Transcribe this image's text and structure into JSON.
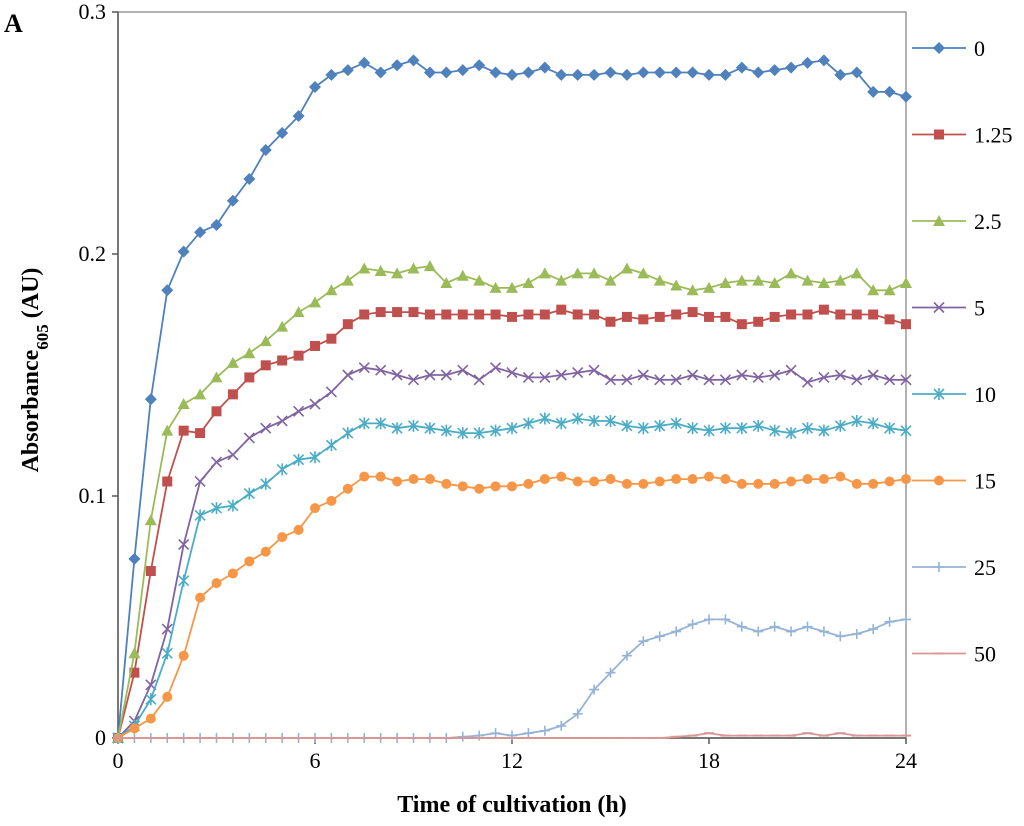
{
  "chart_data": {
    "type": "line",
    "panel_label": "A",
    "title": "",
    "xlabel": "Time of cultivation  (h)",
    "ylabel_main": "Absorbance",
    "ylabel_sub": "605",
    "ylabel_unit": " (AU)",
    "xlim": [
      0,
      24
    ],
    "ylim": [
      0,
      0.3
    ],
    "x_ticks": [
      0,
      6,
      12,
      18,
      24
    ],
    "x_tick_labels": [
      "0",
      "6",
      "12",
      "18",
      "24"
    ],
    "y_ticks": [
      0,
      0.1,
      0.2,
      0.3
    ],
    "y_tick_labels": [
      "0",
      "0.1",
      "0.2",
      "0.3"
    ],
    "legend_position": "right",
    "x": [
      0,
      0.5,
      1,
      1.5,
      2,
      2.5,
      3,
      3.5,
      4,
      4.5,
      5,
      5.5,
      6,
      6.5,
      7,
      7.5,
      8,
      8.5,
      9,
      9.5,
      10,
      10.5,
      11,
      11.5,
      12,
      12.5,
      13,
      13.5,
      14,
      14.5,
      15,
      15.5,
      16,
      16.5,
      17,
      17.5,
      18,
      18.5,
      19,
      19.5,
      20,
      20.5,
      21,
      21.5,
      22,
      22.5,
      23,
      23.5,
      24
    ],
    "series": [
      {
        "name": "0",
        "color": "#4f81bd",
        "marker": "diamond",
        "values": [
          0,
          0.074,
          0.14,
          0.185,
          0.201,
          0.209,
          0.212,
          0.222,
          0.231,
          0.243,
          0.25,
          0.257,
          0.269,
          0.274,
          0.276,
          0.279,
          0.275,
          0.278,
          0.28,
          0.275,
          0.275,
          0.276,
          0.278,
          0.275,
          0.274,
          0.275,
          0.277,
          0.274,
          0.274,
          0.274,
          0.275,
          0.274,
          0.275,
          0.275,
          0.275,
          0.275,
          0.274,
          0.274,
          0.277,
          0.275,
          0.276,
          0.277,
          0.279,
          0.28,
          0.274,
          0.275,
          0.267,
          0.267,
          0.265
        ]
      },
      {
        "name": "1.25",
        "color": "#c0504d",
        "marker": "square",
        "values": [
          0,
          0.027,
          0.069,
          0.106,
          0.127,
          0.126,
          0.135,
          0.142,
          0.149,
          0.154,
          0.156,
          0.158,
          0.162,
          0.165,
          0.171,
          0.175,
          0.176,
          0.176,
          0.176,
          0.175,
          0.175,
          0.175,
          0.175,
          0.175,
          0.174,
          0.175,
          0.175,
          0.177,
          0.175,
          0.175,
          0.172,
          0.174,
          0.173,
          0.174,
          0.175,
          0.176,
          0.174,
          0.174,
          0.171,
          0.172,
          0.174,
          0.175,
          0.175,
          0.177,
          0.175,
          0.175,
          0.175,
          0.173,
          0.171
        ]
      },
      {
        "name": "2.5",
        "color": "#9bbb59",
        "marker": "triangle",
        "values": [
          0,
          0.035,
          0.09,
          0.127,
          0.138,
          0.142,
          0.149,
          0.155,
          0.159,
          0.164,
          0.17,
          0.176,
          0.18,
          0.185,
          0.189,
          0.194,
          0.193,
          0.192,
          0.194,
          0.195,
          0.188,
          0.191,
          0.189,
          0.186,
          0.186,
          0.188,
          0.192,
          0.189,
          0.192,
          0.192,
          0.189,
          0.194,
          0.192,
          0.189,
          0.187,
          0.185,
          0.186,
          0.188,
          0.189,
          0.189,
          0.188,
          0.192,
          0.189,
          0.188,
          0.189,
          0.192,
          0.185,
          0.185,
          0.188
        ]
      },
      {
        "name": "5",
        "color": "#8064a2",
        "marker": "x",
        "values": [
          0,
          0.007,
          0.022,
          0.045,
          0.08,
          0.106,
          0.114,
          0.117,
          0.124,
          0.128,
          0.131,
          0.135,
          0.138,
          0.143,
          0.15,
          0.153,
          0.152,
          0.15,
          0.148,
          0.15,
          0.15,
          0.152,
          0.148,
          0.153,
          0.151,
          0.149,
          0.149,
          0.15,
          0.151,
          0.152,
          0.148,
          0.148,
          0.15,
          0.148,
          0.148,
          0.15,
          0.148,
          0.148,
          0.15,
          0.149,
          0.15,
          0.152,
          0.147,
          0.149,
          0.15,
          0.148,
          0.15,
          0.148,
          0.148
        ]
      },
      {
        "name": "10",
        "color": "#4bacc6",
        "marker": "star",
        "values": [
          0,
          0.005,
          0.016,
          0.035,
          0.065,
          0.092,
          0.095,
          0.096,
          0.101,
          0.105,
          0.111,
          0.115,
          0.116,
          0.121,
          0.126,
          0.13,
          0.13,
          0.128,
          0.129,
          0.128,
          0.127,
          0.126,
          0.126,
          0.127,
          0.128,
          0.13,
          0.132,
          0.13,
          0.132,
          0.131,
          0.131,
          0.129,
          0.128,
          0.129,
          0.13,
          0.128,
          0.127,
          0.128,
          0.128,
          0.129,
          0.127,
          0.126,
          0.128,
          0.127,
          0.129,
          0.131,
          0.13,
          0.128,
          0.127
        ]
      },
      {
        "name": "15",
        "color": "#f79646",
        "marker": "circle",
        "values": [
          0,
          0.004,
          0.008,
          0.017,
          0.034,
          0.058,
          0.064,
          0.068,
          0.073,
          0.077,
          0.083,
          0.086,
          0.095,
          0.098,
          0.103,
          0.108,
          0.108,
          0.106,
          0.107,
          0.107,
          0.105,
          0.104,
          0.103,
          0.104,
          0.104,
          0.105,
          0.107,
          0.108,
          0.106,
          0.106,
          0.107,
          0.105,
          0.105,
          0.106,
          0.107,
          0.107,
          0.108,
          0.107,
          0.105,
          0.105,
          0.105,
          0.106,
          0.107,
          0.107,
          0.108,
          0.105,
          0.105,
          0.106,
          0.107
        ]
      },
      {
        "name": "25",
        "color": "#95b3d7",
        "marker": "plus",
        "values": [
          0,
          0,
          0,
          0,
          0,
          0,
          0,
          0,
          0,
          0,
          0,
          0,
          0,
          0,
          0,
          0,
          0,
          0,
          0,
          0,
          0,
          0.0005,
          0.001,
          0.002,
          0.001,
          0.002,
          0.003,
          0.005,
          0.01,
          0.02,
          0.027,
          0.034,
          0.04,
          0.042,
          0.044,
          0.047,
          0.049,
          0.049,
          0.046,
          0.044,
          0.046,
          0.044,
          0.046,
          0.044,
          0.042,
          0.043,
          0.045,
          0.048,
          0.049
        ]
      },
      {
        "name": "50",
        "color": "#d99694",
        "marker": "dash",
        "values": [
          0,
          0,
          0,
          0,
          0,
          0,
          0,
          0,
          0,
          0,
          0,
          0,
          0,
          0,
          0,
          0,
          0,
          0,
          0,
          0,
          0,
          0,
          0,
          0,
          0,
          0,
          0,
          0,
          0,
          0,
          0,
          0,
          0,
          0,
          0.0005,
          0.001,
          0.002,
          0.001,
          0.001,
          0.001,
          0.001,
          0.001,
          0.002,
          0.001,
          0.002,
          0.001,
          0.001,
          0.001,
          0.001
        ]
      }
    ]
  }
}
